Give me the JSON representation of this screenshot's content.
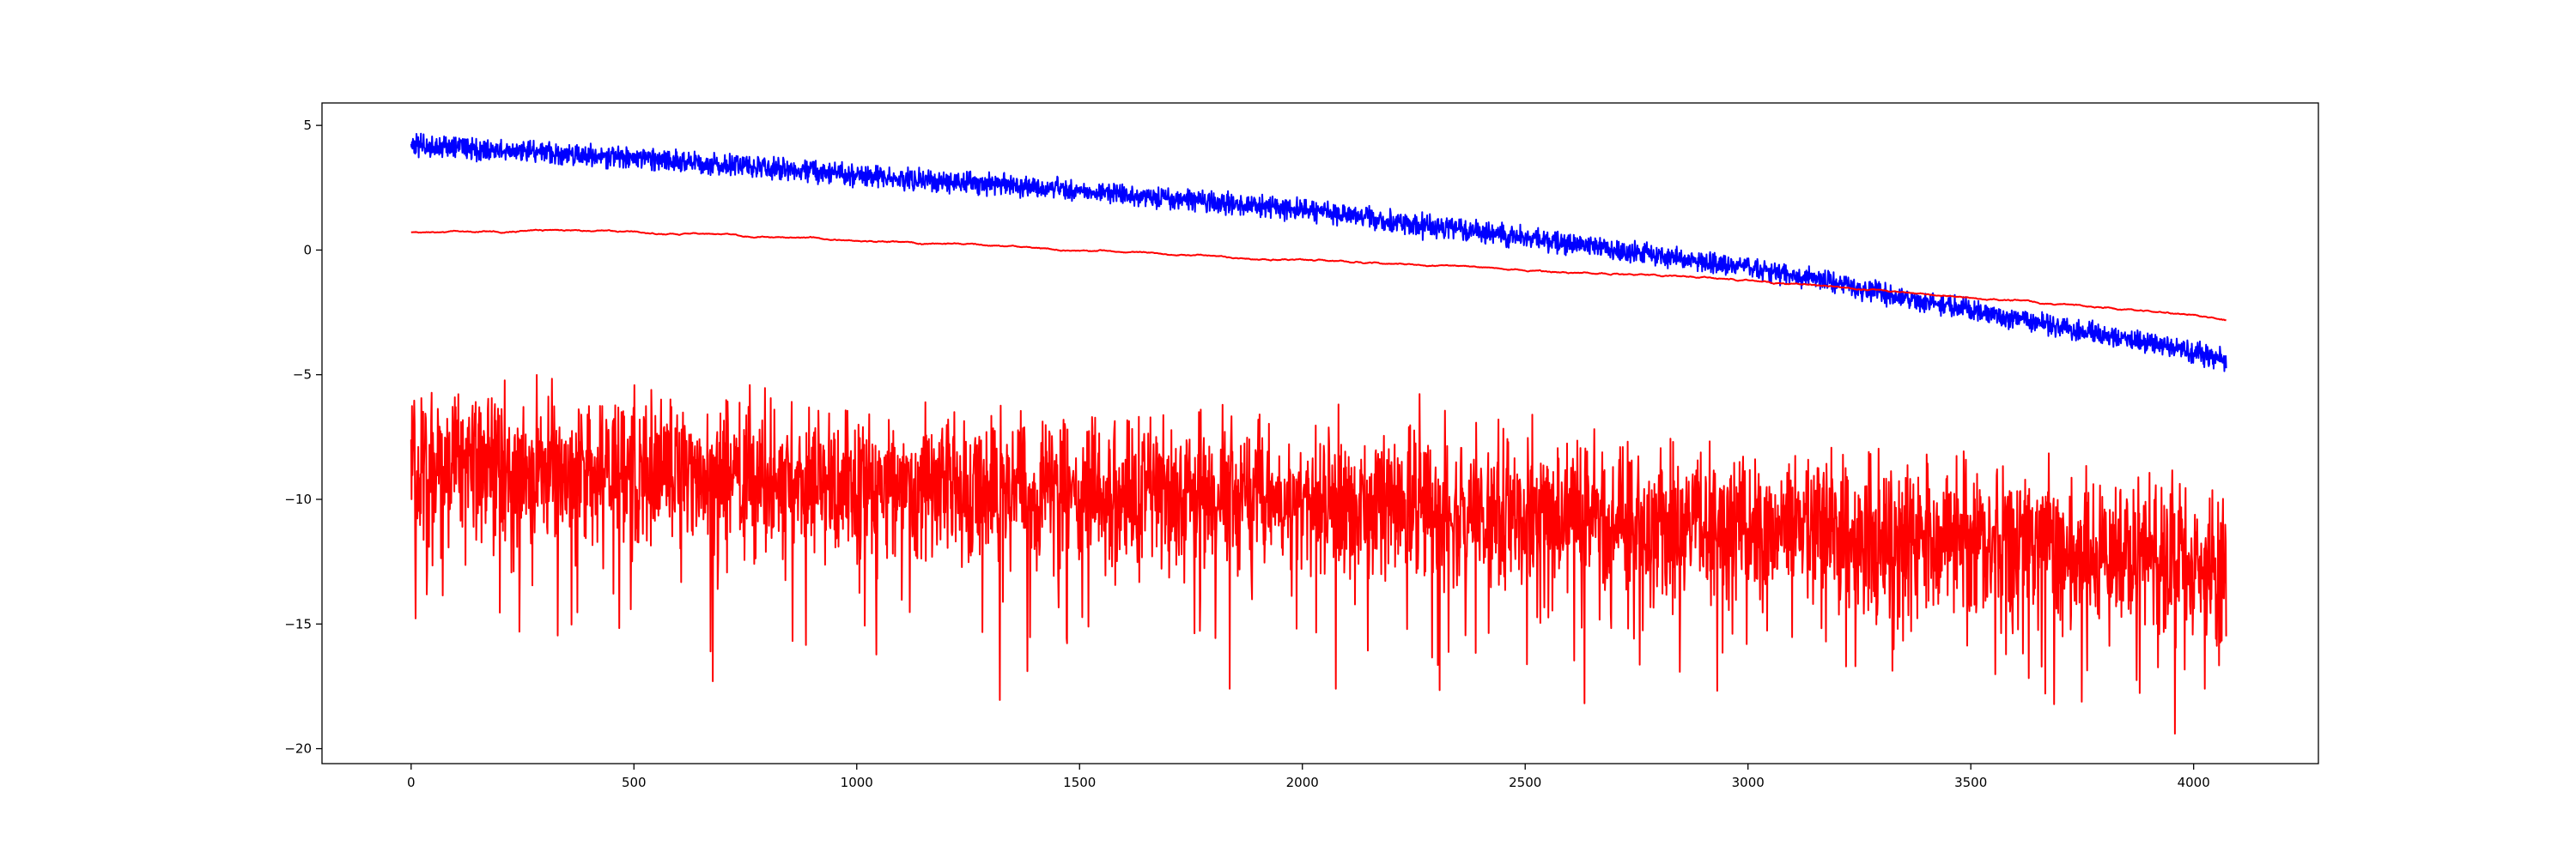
{
  "chart_data": {
    "type": "line",
    "title": "",
    "xlabel": "",
    "ylabel": "",
    "xlim": [
      -200,
      4280
    ],
    "ylim": [
      -20.6,
      5.9
    ],
    "grid": false,
    "legend": "none",
    "x_ticks": [
      0,
      500,
      1000,
      1500,
      2000,
      2500,
      3000,
      3500,
      4000
    ],
    "y_ticks": [
      5,
      0,
      -5,
      -10,
      -15,
      -20
    ],
    "x_tick_labels": [
      "0",
      "500",
      "1000",
      "1500",
      "2000",
      "2500",
      "3000",
      "3500",
      "4000"
    ],
    "y_tick_labels": [
      "5",
      "0",
      "−5",
      "−10",
      "−15",
      "−20"
    ],
    "series": [
      {
        "color": "#0000ff",
        "x_range": [
          0,
          4073
        ],
        "trend": {
          "x": [
            0,
            500,
            1000,
            1500,
            2000,
            2500,
            3000,
            3500,
            4000,
            4073
          ],
          "y": [
            4.2,
            3.7,
            3.0,
            2.4,
            1.6,
            0.5,
            -0.7,
            -2.4,
            -4.1,
            -4.4
          ]
        },
        "noise_amplitude": 0.35,
        "min_point": {
          "x": 2270,
          "y": 0.4
        }
      },
      {
        "color": "#ff0000",
        "x_range": [
          0,
          4073
        ],
        "trend": {
          "x": [
            0,
            300,
            500,
            1000,
            1500,
            2000,
            2500,
            3000,
            3500,
            4000,
            4073
          ],
          "y": [
            0.7,
            0.8,
            0.7,
            0.4,
            0.0,
            -0.4,
            -0.8,
            -1.2,
            -1.9,
            -2.6,
            -2.8
          ]
        },
        "noise_amplitude": 0.06,
        "min_point": null
      },
      {
        "color": "#ff0000",
        "x_range": [
          0,
          4073
        ],
        "trend": {
          "x": [
            0,
            500,
            1000,
            1500,
            2000,
            2500,
            3000,
            3500,
            4000,
            4073
          ],
          "y": [
            -8.6,
            -8.9,
            -9.4,
            -9.7,
            -10.2,
            -10.6,
            -11.1,
            -11.6,
            -12.4,
            -12.6
          ]
        },
        "noise_amplitude": 1.4,
        "spikes": [
          {
            "x": 100,
            "y": -6.3
          },
          {
            "x": 672,
            "y": -16.1
          },
          {
            "x": 1837,
            "y": -17.6
          },
          {
            "x": 2075,
            "y": -17.6
          },
          {
            "x": 3220,
            "y": -16.7
          },
          {
            "x": 3958,
            "y": -19.4
          },
          {
            "x": 4025,
            "y": -17.6
          }
        ]
      }
    ]
  }
}
